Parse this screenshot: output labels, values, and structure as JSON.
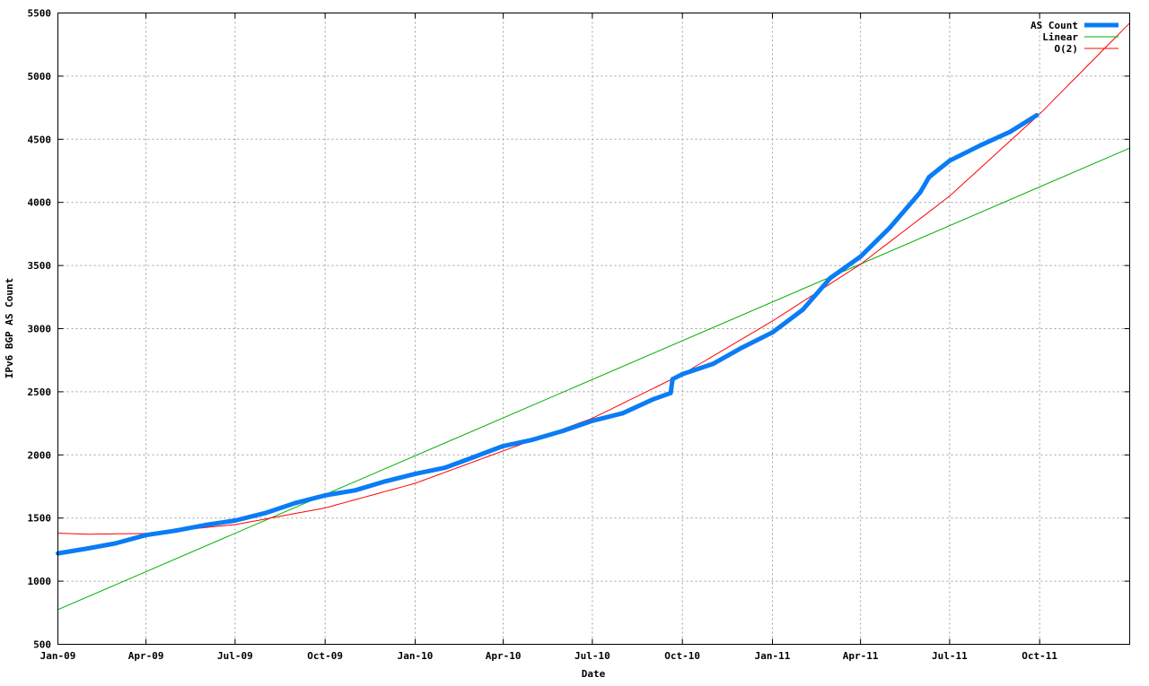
{
  "chart_data": {
    "type": "line",
    "title": "",
    "xlabel": "Date",
    "ylabel": "IPv6 BGP AS Count",
    "xlim": [
      "2009-01-01",
      "2012-01-01"
    ],
    "ylim": [
      500,
      5500
    ],
    "x_ticks": [
      {
        "date": "2009-01-01",
        "label": "Jan-09"
      },
      {
        "date": "2009-04-01",
        "label": "Apr-09"
      },
      {
        "date": "2009-07-01",
        "label": "Jul-09"
      },
      {
        "date": "2009-10-01",
        "label": "Oct-09"
      },
      {
        "date": "2010-01-01",
        "label": "Jan-10"
      },
      {
        "date": "2010-04-01",
        "label": "Apr-10"
      },
      {
        "date": "2010-07-01",
        "label": "Jul-10"
      },
      {
        "date": "2010-10-01",
        "label": "Oct-10"
      },
      {
        "date": "2011-01-01",
        "label": "Jan-11"
      },
      {
        "date": "2011-04-01",
        "label": "Apr-11"
      },
      {
        "date": "2011-07-01",
        "label": "Jul-11"
      },
      {
        "date": "2011-10-01",
        "label": "Oct-11"
      }
    ],
    "y_ticks": [
      "500",
      "1000",
      "1500",
      "2000",
      "2500",
      "3000",
      "3500",
      "4000",
      "4500",
      "5000",
      "5500"
    ],
    "grid": true,
    "legend_position": "top-right",
    "series": [
      {
        "name": "AS Count",
        "color": "#0a7cf5",
        "x": [
          "2009-01-01",
          "2009-02-01",
          "2009-03-01",
          "2009-04-01",
          "2009-05-01",
          "2009-06-01",
          "2009-07-01",
          "2009-08-01",
          "2009-09-01",
          "2009-10-01",
          "2009-11-01",
          "2009-12-01",
          "2010-01-01",
          "2010-02-01",
          "2010-03-01",
          "2010-04-01",
          "2010-05-01",
          "2010-06-01",
          "2010-07-01",
          "2010-08-01",
          "2010-09-01",
          "2010-09-19",
          "2010-09-21",
          "2010-10-01",
          "2010-11-01",
          "2010-12-01",
          "2011-01-01",
          "2011-02-01",
          "2011-03-01",
          "2011-04-01",
          "2011-05-01",
          "2011-06-01",
          "2011-06-10",
          "2011-07-01",
          "2011-08-01",
          "2011-09-01",
          "2011-09-28"
        ],
        "values": [
          1220,
          1260,
          1300,
          1365,
          1400,
          1445,
          1480,
          1540,
          1620,
          1680,
          1720,
          1790,
          1850,
          1900,
          1980,
          2070,
          2120,
          2190,
          2270,
          2330,
          2440,
          2490,
          2600,
          2640,
          2720,
          2850,
          2970,
          3150,
          3400,
          3570,
          3800,
          4080,
          4200,
          4330,
          4450,
          4560,
          4690
        ]
      },
      {
        "name": "Linear",
        "color": "#00b000",
        "x": [
          "2009-01-01",
          "2012-01-01"
        ],
        "values": [
          775,
          4430
        ]
      },
      {
        "name": "O(2)",
        "color": "#ff0000",
        "x": [
          "2009-01-01",
          "2009-02-01",
          "2009-04-01",
          "2009-07-01",
          "2009-10-01",
          "2010-01-01",
          "2010-04-01",
          "2010-07-01",
          "2010-10-01",
          "2011-01-01",
          "2011-04-01",
          "2011-07-01",
          "2011-10-01",
          "2012-01-01"
        ],
        "values": [
          1380,
          1372,
          1378,
          1448,
          1580,
          1775,
          2032,
          2290,
          2640,
          3060,
          3510,
          4050,
          4700,
          5420
        ]
      }
    ]
  }
}
